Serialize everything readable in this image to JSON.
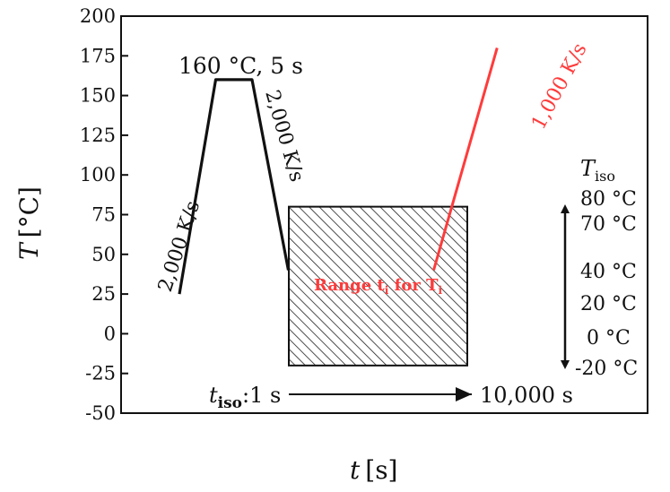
{
  "chart_data": {
    "type": "line",
    "xlabel_var": "t",
    "xlabel_unit": "[s]",
    "ylabel_var": "T",
    "ylabel_unit": "[°C]",
    "ylim": [
      -50,
      200
    ],
    "yticks": [
      -50,
      -25,
      0,
      25,
      50,
      75,
      100,
      125,
      150,
      175,
      200
    ],
    "grid": false,
    "colors": {
      "profile": "#111111",
      "heating": "#ff3b3b",
      "hatch": "#222222"
    },
    "profile_points": [
      {
        "phase": 0.0,
        "T": 25
      },
      {
        "phase": 1.0,
        "T": 160
      },
      {
        "phase": 2.0,
        "T": 160
      },
      {
        "phase": 3.0,
        "T": 40
      }
    ],
    "heating_segment": [
      {
        "phase": 7.0,
        "T": 40
      },
      {
        "phase": 8.5,
        "T": 180
      }
    ],
    "isothermal_box": {
      "T_min": -20,
      "T_max": 80
    },
    "annotations": {
      "heat_rate": "2,000 K/s",
      "hold": "160 °C, 5 s",
      "cool_rate": "2,000 K/s",
      "final_heat_rate": "1,000 K/s",
      "range_text": "Range t",
      "range_sub1": "i",
      "range_for": " for T",
      "range_sub2": "i",
      "tiso_var": "t",
      "tiso_sub": "iso",
      "tiso_start": ":1 s",
      "tiso_end": "10,000 s",
      "Tiso_var": "T",
      "Tiso_sub": "iso"
    },
    "Tiso_values": [
      {
        "label": "80 °C"
      },
      {
        "label": "70 °C"
      },
      {
        "label": "40 °C"
      },
      {
        "label": "20 °C"
      },
      {
        "label": "0 °C"
      },
      {
        "label": "-20 °C"
      }
    ]
  }
}
